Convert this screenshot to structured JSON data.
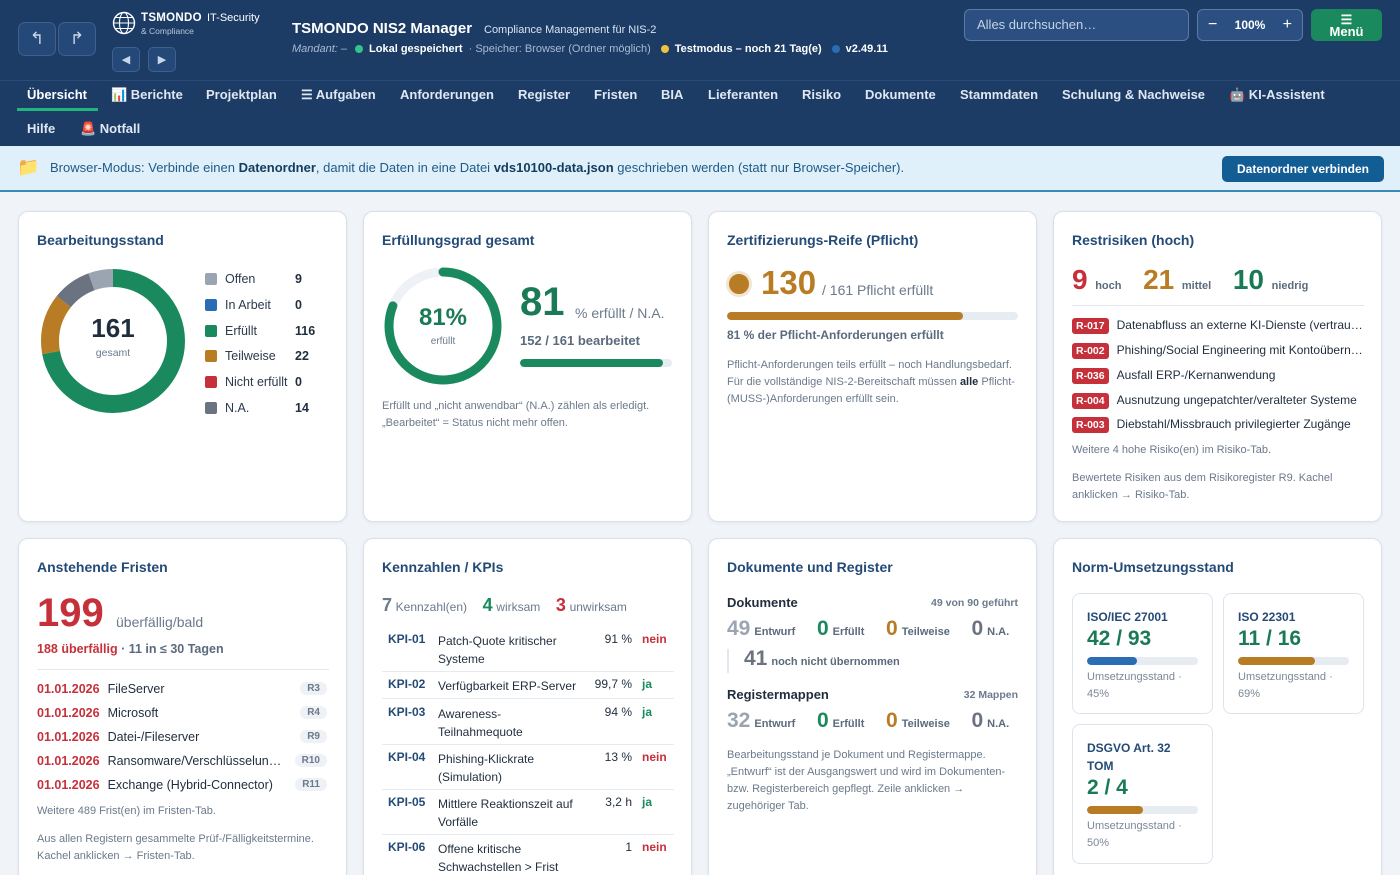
{
  "header": {
    "brand_name": "TSMONDO",
    "brand_sub": "& Compliance",
    "brand_tag": "IT-Security",
    "app_title": "TSMONDO NIS2 Manager",
    "app_subtitle": "Compliance Management für NIS-2",
    "mandant_label": "Mandant: –",
    "storage_status": "Lokal gespeichert",
    "storage_detail": "· Speicher: Browser (Ordner möglich)",
    "test_mode": "Testmodus – noch 21 Tag(e)",
    "version": "v2.49.11",
    "search_placeholder": "Alles durchsuchen…",
    "zoom_level": "100%",
    "zoom_minus": "−",
    "zoom_plus": "+",
    "menu_icon": "☰",
    "menu_label": "Menü",
    "back_icon": "↰",
    "forward_icon": "↱",
    "prev_icon": "◀",
    "next_icon": "▶"
  },
  "nav": {
    "tabs": [
      "Übersicht",
      "📊 Berichte",
      "Projektplan",
      "☰ Aufgaben",
      "Anforderungen",
      "Register",
      "Fristen",
      "BIA",
      "Lieferanten",
      "Risiko",
      "Dokumente",
      "Stammdaten",
      "Schulung & Nachweise",
      "🤖 KI-Assistent",
      "Hilfe",
      "🚨 Notfall"
    ]
  },
  "banner": {
    "icon": "📁",
    "text_1": "Browser-Modus: Verbinde einen ",
    "text_bold_1": "Datenordner",
    "text_2": ", damit die Daten in eine Datei ",
    "text_bold_2": "vds10100-data.json",
    "text_3": " geschrieben werden (statt nur Browser-Speicher).",
    "button": "Datenordner verbinden"
  },
  "status_card": {
    "title": "Bearbeitungsstand",
    "total": "161",
    "total_label": "gesamt",
    "legend": [
      {
        "label": "Offen",
        "value": 9,
        "color": "#9aa5b1"
      },
      {
        "label": "In Arbeit",
        "value": 0,
        "color": "#2a6db5"
      },
      {
        "label": "Erfüllt",
        "value": 116,
        "color": "#1a8a5e"
      },
      {
        "label": "Teilweise",
        "value": 22,
        "color": "#b87d24"
      },
      {
        "label": "Nicht erfüllt",
        "value": 0,
        "color": "#c6303a"
      },
      {
        "label": "N.A.",
        "value": 14,
        "color": "#6b7380"
      }
    ]
  },
  "fulfillment_card": {
    "title": "Erfüllungsgrad gesamt",
    "percent_text": "81%",
    "percent_value": 0.81,
    "ring_label": "erfüllt",
    "big_value": "81",
    "big_unit": "% erfüllt / N.A.",
    "processed": "152 / 161 bearbeitet",
    "processed_fraction": 0.944,
    "note_1": "Erfüllt und „nicht anwendbar“ (N.A.) zählen als erledigt.",
    "note_2": "„Bearbeitet“ = Status nicht mehr offen."
  },
  "cert_card": {
    "title": "Zertifizierungs-Reife (Pflicht)",
    "value": "130",
    "of_text": "/ 161 Pflicht erfüllt",
    "fraction": 0.81,
    "percent_line": "81 % der Pflicht-Anforderungen erfüllt",
    "note_1": "Pflicht-Anforderungen teils erfüllt – noch Handlungsbedarf. Für die vollständige NIS-2-Bereitschaft müssen ",
    "note_bold": "alle",
    "note_2": " Pflicht-(MUSS-)Anforderungen erfüllt sein."
  },
  "risk_card": {
    "title": "Restrisiken (hoch)",
    "high": "9",
    "high_label": "hoch",
    "mid": "21",
    "mid_label": "mittel",
    "low": "10",
    "low_label": "niedrig",
    "items": [
      {
        "id": "R-017",
        "text": "Datenabfluss an externe KI-Dienste (vertrauliche Daten)"
      },
      {
        "id": "R-002",
        "text": "Phishing/Social Engineering mit Kontoübernahme"
      },
      {
        "id": "R-036",
        "text": "Ausfall ERP-/Kernanwendung"
      },
      {
        "id": "R-004",
        "text": "Ausnutzung ungepatchter/veralteter Systeme"
      },
      {
        "id": "R-003",
        "text": "Diebstahl/Missbrauch privilegierter Zugänge"
      }
    ],
    "more": "Weitere 4 hohe Risiko(en) im Risiko-Tab.",
    "note": "Bewertete Risiken aus dem Risikoregister R9. Kachel anklicken → Risiko-Tab."
  },
  "deadlines_card": {
    "title": "Anstehende Fristen",
    "big": "199",
    "big_label": "überfällig/bald",
    "overdue": "188 überfällig",
    "soon": "· 11 in ≤ 30 Tagen",
    "items": [
      {
        "date": "01.01.2026",
        "name": "FileServer",
        "reg": "R3"
      },
      {
        "date": "01.01.2026",
        "name": "Microsoft",
        "reg": "R4"
      },
      {
        "date": "01.01.2026",
        "name": "Datei-/Fileserver",
        "reg": "R9"
      },
      {
        "date": "01.01.2026",
        "name": "Ransomware/Verschlüsselungstrojaner",
        "reg": "R10"
      },
      {
        "date": "01.01.2026",
        "name": "Exchange (Hybrid-Connector)",
        "reg": "R11"
      }
    ],
    "more": "Weitere 489 Frist(en) im Fristen-Tab.",
    "note": "Aus allen Registern gesammelte Prüf-/Fälligkeitstermine. Kachel anklicken → Fristen-Tab."
  },
  "kpi_card": {
    "title": "Kennzahlen / KPIs",
    "count": "7",
    "count_label": "Kennzahl(en)",
    "effective": "4",
    "effective_label": "wirksam",
    "ineffective": "3",
    "ineffective_label": "unwirksam",
    "rows": [
      {
        "id": "KPI-01",
        "name": "Patch-Quote kritischer Systeme",
        "value": "91 %",
        "status": "nein"
      },
      {
        "id": "KPI-02",
        "name": "Verfügbarkeit ERP-Server",
        "value": "99,7 %",
        "status": "ja"
      },
      {
        "id": "KPI-03",
        "name": "Awareness-Teilnahmequote",
        "value": "94 %",
        "status": "ja"
      },
      {
        "id": "KPI-04",
        "name": "Phishing-Klickrate (Simulation)",
        "value": "13 %",
        "status": "nein"
      },
      {
        "id": "KPI-05",
        "name": "Mittlere Reaktionszeit auf Vorfälle",
        "value": "3,2 h",
        "status": "ja"
      },
      {
        "id": "KPI-06",
        "name": "Offene kritische Schwachstellen > Frist",
        "value": "1",
        "status": "nein"
      }
    ]
  },
  "docs_card": {
    "title": "Dokumente und Register",
    "docs_title": "Dokumente",
    "docs_count": "49 von 90 geführt",
    "docs": [
      {
        "value": "49",
        "label": "Entwurf",
        "color": "#9aa5b1"
      },
      {
        "value": "0",
        "label": "Erfüllt",
        "color": "#1a8a5e"
      },
      {
        "value": "0",
        "label": "Teilweise",
        "color": "#b87d24"
      },
      {
        "value": "0",
        "label": "N.A.",
        "color": "#6b7380"
      }
    ],
    "not_taken": "41",
    "not_taken_label": "noch nicht übernommen",
    "reg_title": "Registermappen",
    "reg_count": "32 Mappen",
    "regs": [
      {
        "value": "32",
        "label": "Entwurf",
        "color": "#9aa5b1"
      },
      {
        "value": "0",
        "label": "Erfüllt",
        "color": "#1a8a5e"
      },
      {
        "value": "0",
        "label": "Teilweise",
        "color": "#b87d24"
      },
      {
        "value": "0",
        "label": "N.A.",
        "color": "#6b7380"
      }
    ],
    "note": "Bearbeitungsstand je Dokument und Registermappe. „Entwurf“ ist der Ausgangswert und wird im Dokumenten- bzw. Registerbereich gepflegt. Zeile anklicken → zugehöriger Tab."
  },
  "norm_card": {
    "title": "Norm-Umsetzungsstand",
    "items": [
      {
        "name": "ISO/IEC 27001",
        "value": "42 / 93",
        "fraction": 0.45,
        "label": "Umsetzungsstand · 45%",
        "color": "#2a6db5",
        "valcolor": "#1a7a55"
      },
      {
        "name": "ISO 22301",
        "value": "11 / 16",
        "fraction": 0.69,
        "label": "Umsetzungsstand · 69%",
        "color": "#b87d24",
        "valcolor": "#1a7a55"
      },
      {
        "name": "DSGVO Art. 32 TOM",
        "value": "2 / 4",
        "fraction": 0.5,
        "label": "Umsetzungsstand · 50%",
        "color": "#b87d24",
        "valcolor": "#1a7a55"
      }
    ]
  }
}
